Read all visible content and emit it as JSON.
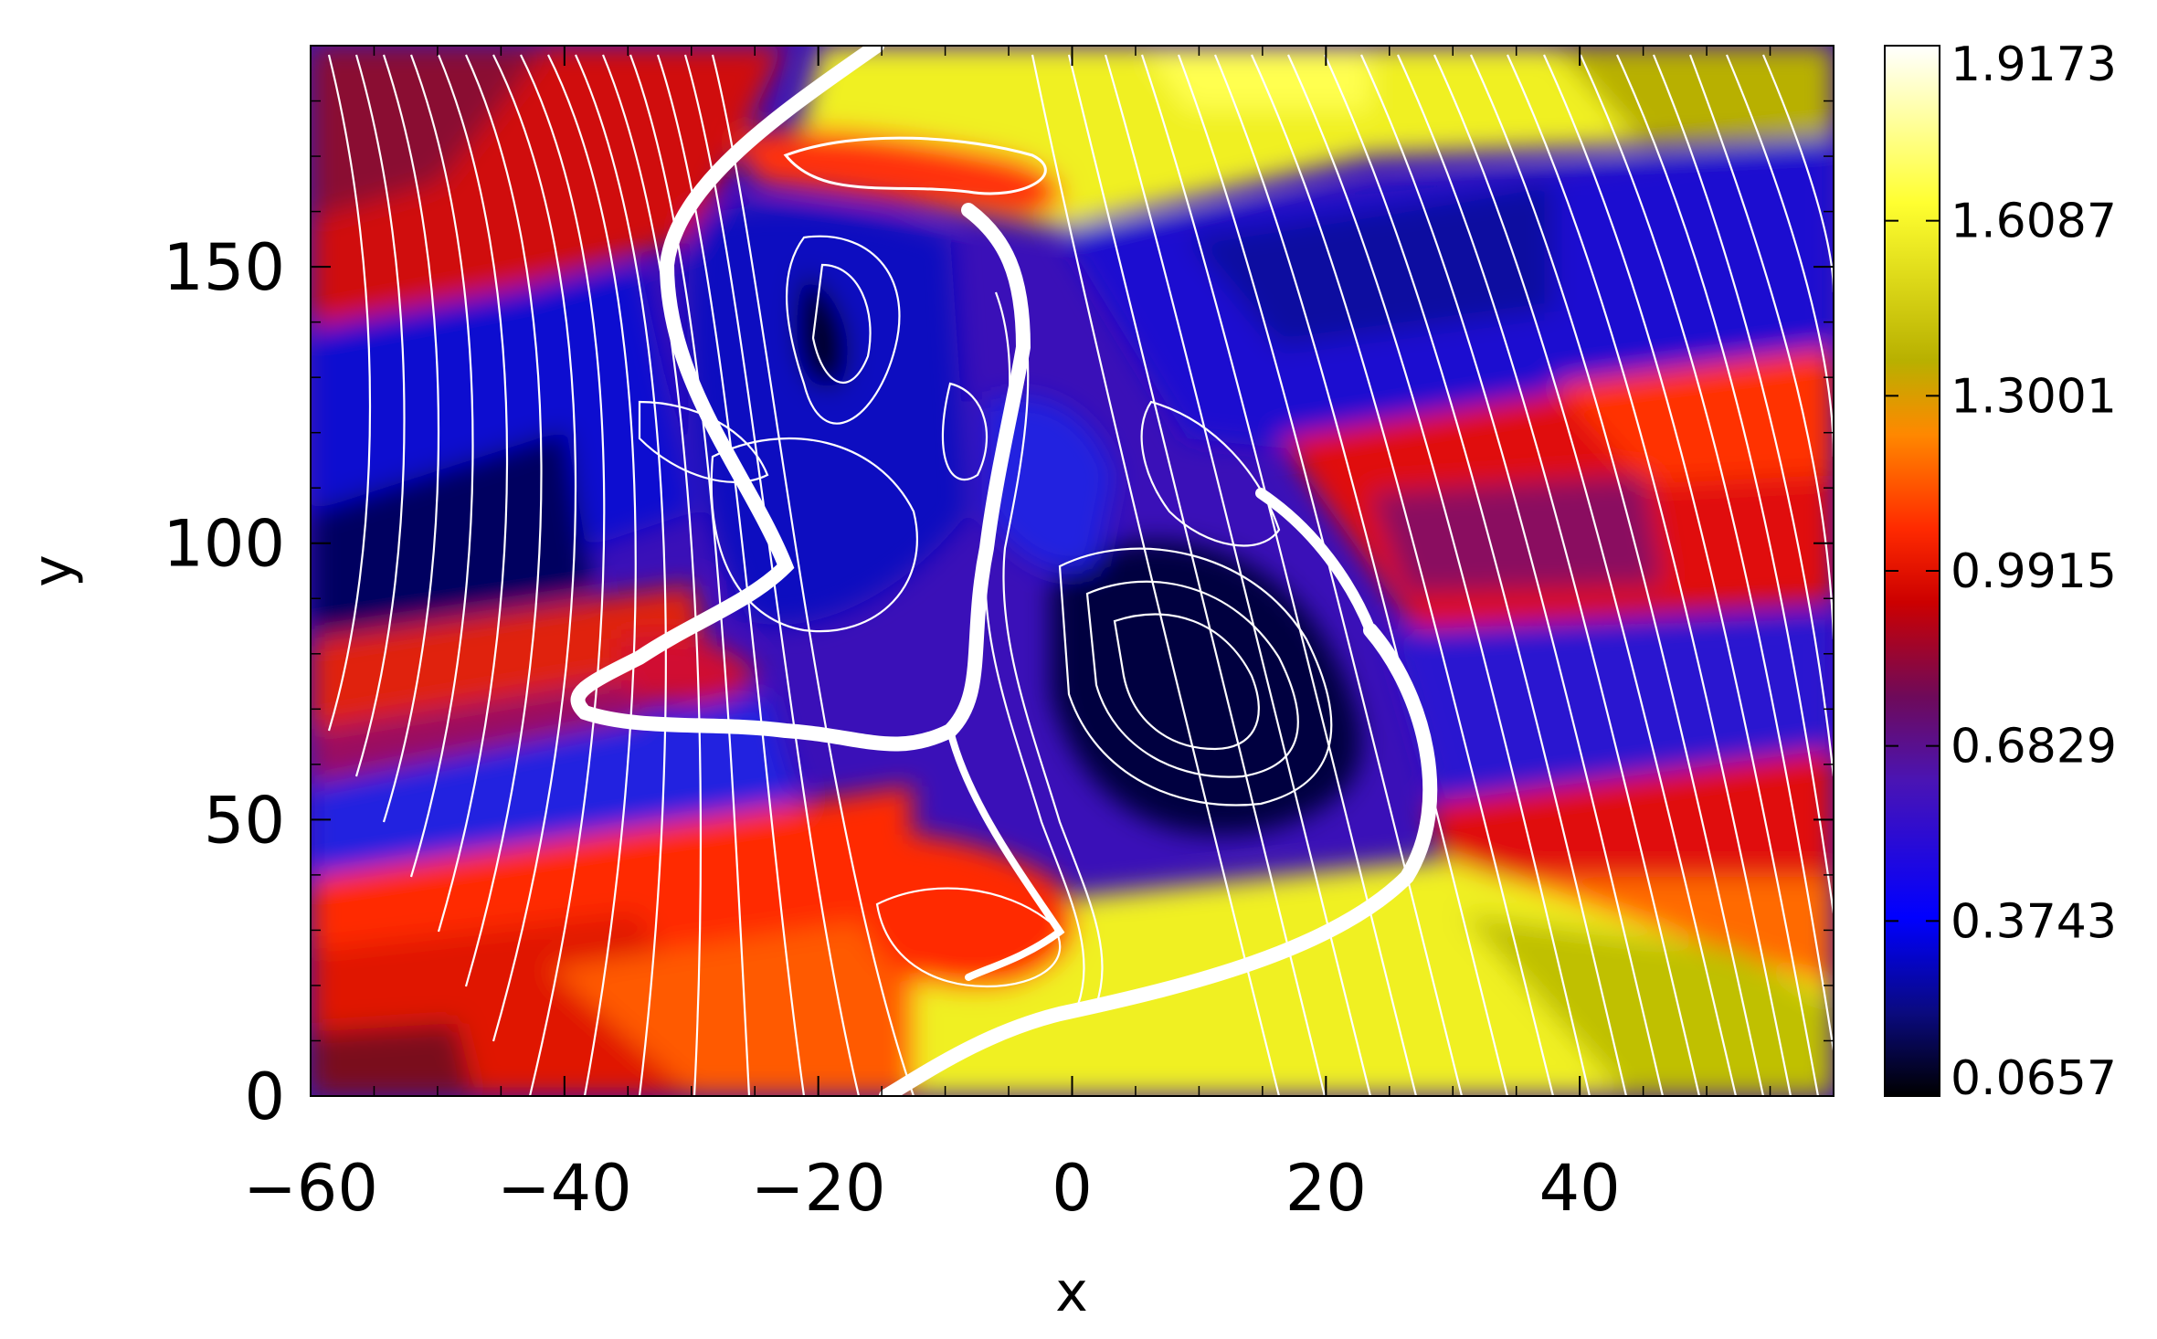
{
  "chart_data": {
    "type": "heatmap",
    "title": "",
    "xlabel": "x",
    "ylabel": "y",
    "xlim": [
      -60,
      60
    ],
    "ylim": [
      0,
      190
    ],
    "x_ticks": [
      {
        "value": -60,
        "label": "−60"
      },
      {
        "value": -40,
        "label": "−40"
      },
      {
        "value": -20,
        "label": "−20"
      },
      {
        "value": 0,
        "label": "0"
      },
      {
        "value": 20,
        "label": "20"
      },
      {
        "value": 40,
        "label": "40"
      }
    ],
    "y_ticks": [
      {
        "value": 0,
        "label": "0"
      },
      {
        "value": 50,
        "label": "50"
      },
      {
        "value": 100,
        "label": "100"
      },
      {
        "value": 150,
        "label": "150"
      }
    ],
    "colorbar": {
      "min": 0.0657,
      "max": 1.9173,
      "tick_values": [
        0.0657,
        0.3743,
        0.6829,
        0.9915,
        1.3001,
        1.6087,
        1.9173
      ],
      "tick_labels": [
        "0.0657",
        "0.3743",
        "0.6829",
        "0.9915",
        "1.3001",
        "1.6087",
        "1.9173"
      ],
      "colormap": [
        "#000000",
        "#0a0a80",
        "#0000ff",
        "#4a14b4",
        "#6e0a5a",
        "#cc0000",
        "#ff2a00",
        "#ff8800",
        "#b8b000",
        "#ffff30",
        "#ffffff"
      ]
    },
    "contour_color": "#ffffff",
    "grid": false,
    "legend": "none"
  }
}
